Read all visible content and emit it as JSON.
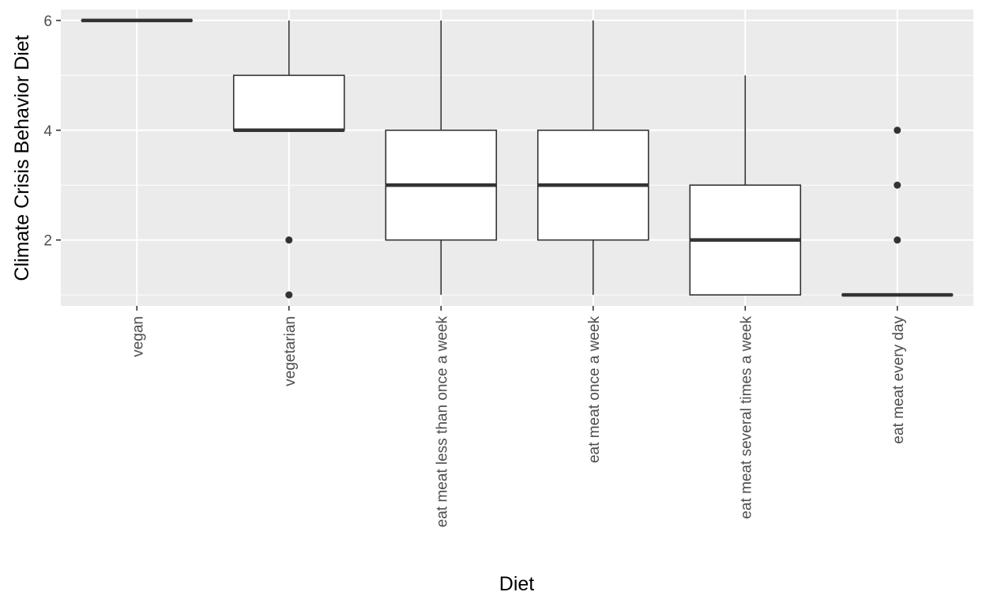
{
  "chart_data": {
    "type": "boxplot",
    "title": "",
    "xlabel": "Diet",
    "ylabel": "Climate Crisis Behavior Diet",
    "ylim": [
      0.8,
      6.2
    ],
    "yticks": [
      2,
      4,
      6
    ],
    "grid": true,
    "legend": "none",
    "categories": [
      "vegan",
      "vegetarian",
      "eat meat less than once a week",
      "eat meat once a week",
      "eat meat several times a week",
      "eat meat every day"
    ],
    "boxes": [
      {
        "category": "vegan",
        "lower_whisker": 6,
        "q1": 6,
        "median": 6,
        "q3": 6,
        "upper_whisker": 6,
        "outliers": []
      },
      {
        "category": "vegetarian",
        "lower_whisker": 4,
        "q1": 4,
        "median": 4,
        "q3": 5,
        "upper_whisker": 6,
        "outliers": [
          2,
          1
        ]
      },
      {
        "category": "eat meat less than once a week",
        "lower_whisker": 1,
        "q1": 2,
        "median": 3,
        "q3": 4,
        "upper_whisker": 6,
        "outliers": []
      },
      {
        "category": "eat meat once a week",
        "lower_whisker": 1,
        "q1": 2,
        "median": 3,
        "q3": 4,
        "upper_whisker": 6,
        "outliers": []
      },
      {
        "category": "eat meat several times a week",
        "lower_whisker": 1,
        "q1": 1,
        "median": 2,
        "q3": 3,
        "upper_whisker": 5,
        "outliers": []
      },
      {
        "category": "eat meat every day",
        "lower_whisker": 1,
        "q1": 1,
        "median": 1,
        "q3": 1,
        "upper_whisker": 1,
        "outliers": [
          4,
          3,
          2
        ]
      }
    ],
    "colors": {
      "panel": "#ebebeb",
      "grid": "#ffffff",
      "box_fill": "#ffffff",
      "box_line": "#333333",
      "outlier": "#333333"
    }
  }
}
